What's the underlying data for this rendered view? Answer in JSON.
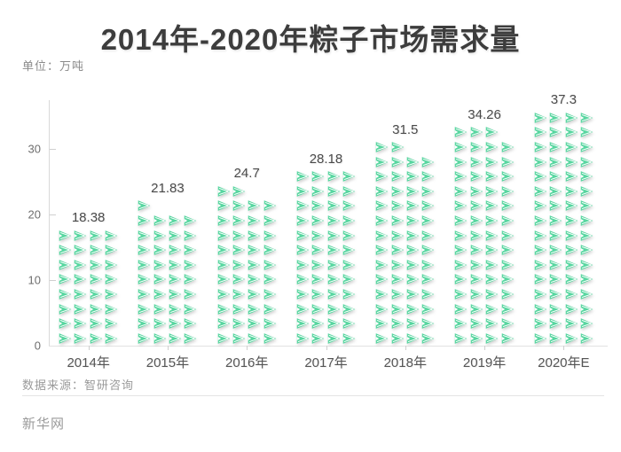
{
  "page": {
    "title": "2014年-2020年粽子市场需求量",
    "unit_label": "单位：万吨",
    "source": "数据来源：智研咨询",
    "watermark": "新华网"
  },
  "chart_data": {
    "type": "bar",
    "variant": "pictogram",
    "icon": "zongzi-triangle-icon",
    "icon_color": "#58d6a0",
    "title": "2014年-2020年粽子市场需求量",
    "xlabel": "",
    "ylabel": "万吨",
    "categories": [
      "2014年",
      "2015年",
      "2016年",
      "2017年",
      "2018年",
      "2019年",
      "2020年E"
    ],
    "values": [
      18.38,
      21.83,
      24.7,
      28.18,
      31.5,
      34.26,
      37.3
    ],
    "value_labels": [
      "18.38",
      "21.83",
      "24.7",
      "28.18",
      "31.5",
      "34.26",
      "37.3"
    ],
    "ylim": [
      0,
      37.5
    ],
    "yticks": [
      0,
      10,
      20,
      30
    ],
    "grid": false,
    "legend": false,
    "icons_per_row": 4,
    "max_icons": 64
  }
}
